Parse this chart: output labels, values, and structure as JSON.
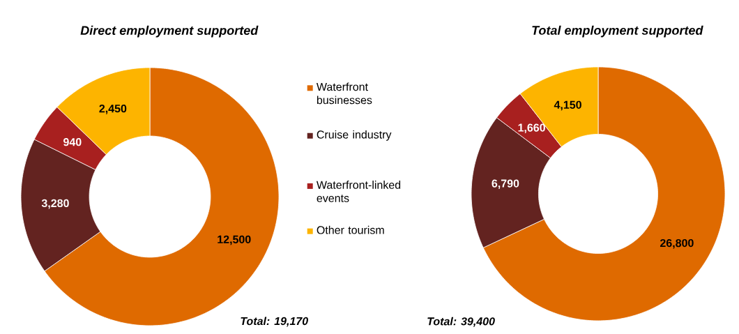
{
  "chart_data": [
    {
      "type": "donut",
      "title": "Direct employment supported",
      "categories": [
        "Waterfront businesses",
        "Cruise industry",
        "Waterfront-linked events",
        "Other tourism"
      ],
      "values": [
        12500,
        3280,
        940,
        2450
      ],
      "value_labels": [
        "12,500",
        "3,280",
        "940",
        "2,450"
      ],
      "colors": [
        "#df6a00",
        "#632320",
        "#a8201f",
        "#fdb400"
      ],
      "legend": "right",
      "annotations": [
        "Total: 19,170"
      ]
    },
    {
      "type": "donut",
      "title": "Total employment supported",
      "categories": [
        null,
        null,
        null,
        null
      ],
      "values": [
        26800,
        6790,
        1660,
        4150
      ],
      "value_labels": [
        "26,800",
        "6,790",
        "1,660",
        "4,150"
      ],
      "colors": [
        "#df6a00",
        "#632320",
        "#a8201f",
        "#fdb400"
      ],
      "annotations": [
        "Total:  39,400"
      ]
    }
  ]
}
